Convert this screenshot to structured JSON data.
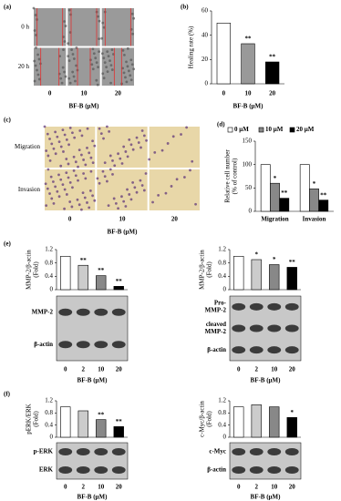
{
  "panel_labels": {
    "a": "(a)",
    "b": "(b)",
    "c": "(c)",
    "d": "(d)",
    "e": "(e)",
    "f": "(f)"
  },
  "images": [
    {
      "rows": [
        "0 h",
        "20 h"
      ],
      "columns": [
        "0",
        "10",
        "20"
      ],
      "xlabel": "BF-B (μM)"
    },
    {
      "rows": [
        "Migration",
        "Invasion"
      ],
      "columns": [
        "0",
        "10",
        "20"
      ],
      "xlabel": "BF-B (μM)"
    }
  ],
  "chart_data": [
    {
      "type": "bar",
      "ylabel": [
        "Healing rate (%)"
      ],
      "xlabel": "BF-B (μM)",
      "categories": [
        "0",
        "10",
        "20"
      ],
      "values": [
        50,
        33,
        18
      ],
      "colors": [
        "#ffffff",
        "#999999",
        "#000000"
      ],
      "significance": [
        null,
        "**",
        "**"
      ],
      "ylim": [
        0,
        60
      ],
      "yticks": [
        0,
        20,
        40,
        60
      ]
    },
    {
      "type": "bar",
      "ylabel": [
        "Relative cell number",
        "(% of control)"
      ],
      "categories": [
        "Migration",
        "Invasion"
      ],
      "series": [
        {
          "name": "0 μM",
          "color": "#ffffff",
          "values": [
            100,
            100
          ],
          "significance": [
            null,
            null
          ]
        },
        {
          "name": "10 μM",
          "color": "#888888",
          "values": [
            60,
            48
          ],
          "significance": [
            "*",
            "*"
          ]
        },
        {
          "name": "20 μM",
          "color": "#000000",
          "values": [
            28,
            24
          ],
          "significance": [
            "**",
            "**"
          ]
        }
      ],
      "ylim": [
        0,
        150
      ],
      "yticks": [
        0,
        50,
        100,
        150
      ]
    },
    {
      "type": "bar",
      "ylabel": [
        "MMP-2/β-actin",
        "(Fold)"
      ],
      "xlabel": "BF-B (μM)",
      "categories": [
        "0",
        "2",
        "10",
        "20"
      ],
      "values": [
        1.0,
        0.73,
        0.42,
        0.1
      ],
      "colors": [
        "#ffffff",
        "#cccccc",
        "#888888",
        "#000000"
      ],
      "significance": [
        null,
        "**",
        "**",
        "**"
      ],
      "ylim": [
        0,
        1.2
      ],
      "yticks": [
        0,
        0.4,
        0.8,
        1.2
      ],
      "blot_rows": [
        [
          "MMP-2"
        ],
        [
          "β-actin"
        ]
      ]
    },
    {
      "type": "bar",
      "ylabel": [
        "MMP-2/β-actin",
        "(Fold)"
      ],
      "xlabel": "BF-B (μM)",
      "categories": [
        "0",
        "2",
        "10",
        "20"
      ],
      "values": [
        1.0,
        0.9,
        0.75,
        0.67
      ],
      "colors": [
        "#ffffff",
        "#cccccc",
        "#888888",
        "#000000"
      ],
      "significance": [
        null,
        "*",
        "*",
        "**"
      ],
      "ylim": [
        0,
        1.2
      ],
      "yticks": [
        0,
        0.4,
        0.8,
        1.2
      ],
      "blot_rows": [
        [
          "Pro-",
          "MMP-2"
        ],
        [
          "cleaved",
          "MMP-2"
        ],
        [
          "β-actin"
        ]
      ]
    },
    {
      "type": "bar",
      "ylabel": [
        "pERK/ERK",
        "(Fold)"
      ],
      "xlabel": "BF-B (μM)",
      "categories": [
        "0",
        "2",
        "10",
        "20"
      ],
      "values": [
        1.0,
        0.87,
        0.58,
        0.35
      ],
      "colors": [
        "#ffffff",
        "#cccccc",
        "#888888",
        "#000000"
      ],
      "significance": [
        null,
        null,
        "**",
        "**"
      ],
      "ylim": [
        0,
        1.2
      ],
      "yticks": [
        0,
        0.4,
        0.8,
        1.2
      ],
      "blot_rows": [
        [
          "p-ERK"
        ],
        [
          "ERK"
        ]
      ]
    },
    {
      "type": "bar",
      "ylabel": [
        "c-Myc/β-actin",
        "(Fold)"
      ],
      "xlabel": "BF-B (μM)",
      "categories": [
        "0",
        "2",
        "10",
        "20"
      ],
      "values": [
        1.0,
        1.07,
        1.0,
        0.65
      ],
      "colors": [
        "#ffffff",
        "#cccccc",
        "#888888",
        "#000000"
      ],
      "significance": [
        null,
        null,
        null,
        "*"
      ],
      "ylim": [
        0,
        1.2
      ],
      "yticks": [
        0,
        0.4,
        0.8,
        1.2
      ],
      "blot_rows": [
        [
          "c-Myc"
        ],
        [
          "β-actin"
        ]
      ]
    }
  ]
}
